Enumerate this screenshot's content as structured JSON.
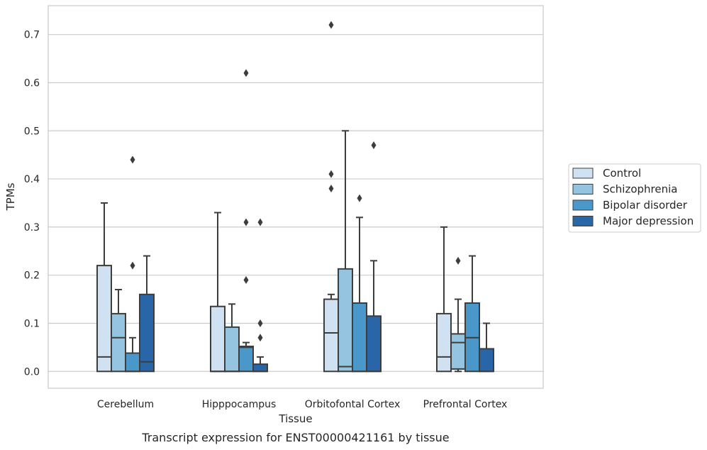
{
  "chart_data": {
    "type": "boxplot",
    "caption": "Transcript expression for ENST00000421161 by tissue",
    "xlabel": "Tissue",
    "ylabel": "TPMs",
    "ylim": [
      -0.035,
      0.76
    ],
    "yticks": [
      "0.0",
      "0.1",
      "0.2",
      "0.3",
      "0.4",
      "0.5",
      "0.6",
      "0.7"
    ],
    "grid": "horizontal",
    "legend_position": "right",
    "categories": [
      "Cerebellum",
      "Hipppocampus",
      "Orbitofontal Cortex",
      "Prefrontal Cortex"
    ],
    "series": [
      {
        "name": "Control",
        "color": "#d0e1f2",
        "boxes": [
          {
            "whislo": 0.0,
            "q1": 0.0,
            "med": 0.03,
            "q3": 0.22,
            "whishi": 0.35,
            "fliers": []
          },
          {
            "whislo": 0.0,
            "q1": 0.0,
            "med": 0.0,
            "q3": 0.135,
            "whishi": 0.33,
            "fliers": []
          },
          {
            "whislo": 0.0,
            "q1": 0.0,
            "med": 0.08,
            "q3": 0.15,
            "whishi": 0.16,
            "fliers": [
              0.38,
              0.41,
              0.72
            ]
          },
          {
            "whislo": 0.0,
            "q1": 0.0,
            "med": 0.03,
            "q3": 0.12,
            "whishi": 0.3,
            "fliers": []
          }
        ]
      },
      {
        "name": "Schizophrenia",
        "color": "#94c4df",
        "boxes": [
          {
            "whislo": 0.0,
            "q1": 0.0,
            "med": 0.07,
            "q3": 0.12,
            "whishi": 0.17,
            "fliers": []
          },
          {
            "whislo": 0.0,
            "q1": 0.0,
            "med": 0.0,
            "q3": 0.092,
            "whishi": 0.14,
            "fliers": []
          },
          {
            "whislo": 0.0,
            "q1": 0.0,
            "med": 0.01,
            "q3": 0.213,
            "whishi": 0.5,
            "fliers": []
          },
          {
            "whislo": 0.0,
            "q1": 0.005,
            "med": 0.06,
            "q3": 0.078,
            "whishi": 0.15,
            "fliers": [
              0.23
            ]
          }
        ]
      },
      {
        "name": "Bipolar disorder",
        "color": "#4a98c9",
        "boxes": [
          {
            "whislo": 0.0,
            "q1": 0.0,
            "med": 0.0,
            "q3": 0.038,
            "whishi": 0.07,
            "fliers": [
              0.22,
              0.44
            ]
          },
          {
            "whislo": 0.0,
            "q1": 0.0,
            "med": 0.05,
            "q3": 0.052,
            "whishi": 0.06,
            "fliers": [
              0.19,
              0.31,
              0.62
            ]
          },
          {
            "whislo": 0.0,
            "q1": 0.0,
            "med": 0.0,
            "q3": 0.142,
            "whishi": 0.32,
            "fliers": [
              0.36
            ]
          },
          {
            "whislo": 0.0,
            "q1": 0.0,
            "med": 0.07,
            "q3": 0.142,
            "whishi": 0.24,
            "fliers": []
          }
        ]
      },
      {
        "name": "Major depression",
        "color": "#2866a8",
        "boxes": [
          {
            "whislo": 0.0,
            "q1": 0.0,
            "med": 0.02,
            "q3": 0.16,
            "whishi": 0.24,
            "fliers": []
          },
          {
            "whislo": 0.0,
            "q1": 0.0,
            "med": 0.0,
            "q3": 0.015,
            "whishi": 0.03,
            "fliers": [
              0.07,
              0.1,
              0.31
            ]
          },
          {
            "whislo": 0.0,
            "q1": 0.0,
            "med": 0.0,
            "q3": 0.115,
            "whishi": 0.23,
            "fliers": [
              0.47
            ]
          },
          {
            "whislo": 0.0,
            "q1": 0.0,
            "med": 0.0,
            "q3": 0.047,
            "whishi": 0.1,
            "fliers": []
          }
        ]
      }
    ]
  }
}
